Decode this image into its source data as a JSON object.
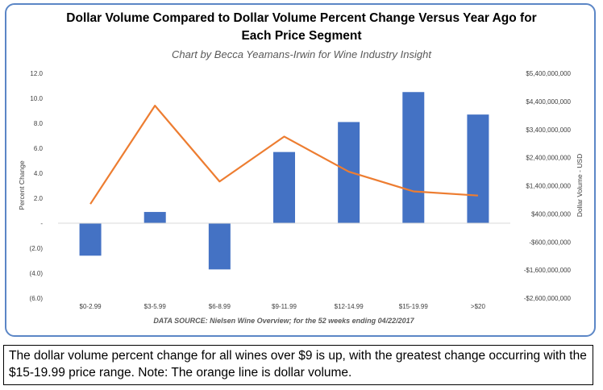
{
  "chart_data": {
    "type": "bar",
    "title_line1": "Dollar Volume Compared to Dollar Volume Percent Change Versus Year Ago for",
    "title_line2": "Each Price Segment",
    "subtitle": "Chart by Becca Yeamans-Irwin for Wine Industry Insight",
    "source": "DATA SOURCE: Nielsen Wine Overview; for the 52 weeks ending 04/22/2017",
    "categories": [
      "$0-2.99",
      "$3-5.99",
      "$6-8.99",
      "$9-11.99",
      "$12-14.99",
      "$15-19.99",
      ">$20"
    ],
    "series": [
      {
        "kind": "bar",
        "axis": "left",
        "color": "#4472c4",
        "values": [
          -2.6,
          0.9,
          -3.7,
          5.7,
          8.1,
          10.5,
          8.7
        ]
      },
      {
        "kind": "line",
        "axis": "right",
        "color": "#ed7d31",
        "values": [
          750000000,
          4250000000,
          1550000000,
          3150000000,
          1900000000,
          1200000000,
          1050000000
        ]
      }
    ],
    "y_left": {
      "label": "Percent Change",
      "ylim": [
        -6,
        12
      ],
      "ticks": [
        12,
        10,
        8,
        6,
        4,
        2,
        0,
        -2,
        -4,
        -6
      ],
      "tick_labels": [
        "12.0",
        "10.0",
        "8.0",
        "6.0",
        "4.0",
        "2.0",
        "-",
        "(2.0)",
        "(4.0)",
        "(6.0)"
      ]
    },
    "y_right": {
      "label": "Dollar Volume - USD",
      "ylim": [
        -2600000000,
        5400000000
      ],
      "ticks": [
        5400000000,
        4400000000,
        3400000000,
        2400000000,
        1400000000,
        400000000,
        -600000000,
        -1600000000,
        -2600000000
      ],
      "tick_labels": [
        "$5,400,000,000",
        "$4,400,000,000",
        "$3,400,000,000",
        "$2,400,000,000",
        "$1,400,000,000",
        "$400,000,000",
        "-$600,000,000",
        "-$1,600,000,000",
        "-$2,600,000,000"
      ]
    },
    "grid": false,
    "legend": "none"
  },
  "caption": "The dollar volume percent change for all wines over $9 is up, with the greatest change occurring with the $15-19.99 price range. Note:  The orange line is dollar volume.",
  "colors": {
    "frame_border": "#5b86c6",
    "bar": "#4472c4",
    "line": "#ed7d31"
  }
}
